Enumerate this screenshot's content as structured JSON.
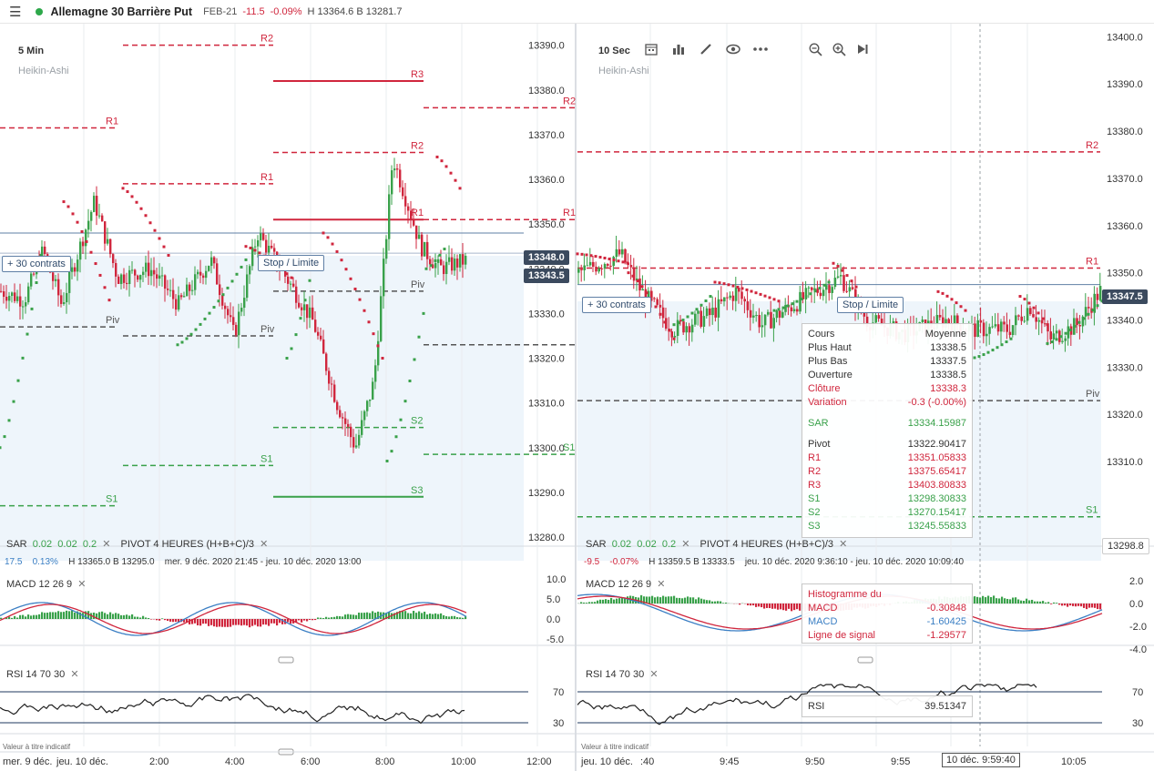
{
  "header": {
    "instrument": "Allemagne 30 Barrière Put",
    "expiry": "FEB-21",
    "change": "-11.5",
    "change_pct": "-0.09%",
    "hb": "H 13364.6  B 13281.7"
  },
  "left": {
    "timeframe": "5 Min",
    "chart_style": "Heikin-Ashi",
    "y_ticks": [
      "13390.0",
      "13380.0",
      "13370.0",
      "13360.0",
      "13350.0",
      "13340.0",
      "13330.0",
      "13320.0",
      "13310.0",
      "13300.0",
      "13290.0",
      "13280.0"
    ],
    "tag_upper": "13348.0",
    "tag_lower": "13343.5",
    "contracts": "+ 30 contrats",
    "stop": "Stop / Limite",
    "pivot_labels": {
      "r1a": "R1",
      "r2a": "R2",
      "r1b": "R1",
      "r2b": "R2",
      "r3": "R3",
      "r1c": "R1",
      "r2c": "R2",
      "r1d": "R1",
      "piv_a": "Piv",
      "piv_b": "Piv",
      "piv_c": "Piv",
      "s1a": "S1",
      "s1b": "S1",
      "s2": "S2",
      "s3": "S3",
      "s1c": "S1"
    },
    "sar_label": {
      "name": "SAR",
      "p1": "0.02",
      "p2": "0.02",
      "p3": "0.2"
    },
    "pivot_ind_label": "PIVOT  4 HEURES  (H+B+C)/3",
    "info": {
      "v1": "17.5",
      "v2": "0.13%",
      "hb": "H 13365.0   B 13295.0",
      "range": "mer. 9 déc. 2020 21:45 - jeu. 10 déc. 2020 13:00"
    },
    "macd_label": "MACD  12  26  9",
    "macd_ticks": [
      "10.0",
      "5.0",
      "0.0",
      "-5.0"
    ],
    "rsi_label": "RSI  14  70  30",
    "rsi_ticks": [
      "70",
      "30"
    ],
    "watermark": "Valeur à titre indicatif",
    "time_labels": [
      "mer. 9 déc.",
      "jeu. 10 déc.",
      "2:00",
      "4:00",
      "6:00",
      "8:00",
      "10:00",
      "12:00"
    ]
  },
  "right": {
    "timeframe": "10 Sec",
    "chart_style": "Heikin-Ashi",
    "y_ticks": [
      "13400.0",
      "13390.0",
      "13380.0",
      "13370.0",
      "13360.0",
      "13350.0",
      "13340.0",
      "13330.0",
      "13320.0",
      "13310.0"
    ],
    "tag_price": "13347.5",
    "tag_bottom": "13298.8",
    "contracts": "+ 30 contrats",
    "stop": "Stop / Limite",
    "pivot_labels": {
      "r2": "R2",
      "r1": "R1",
      "piv": "Piv",
      "s1": "S1"
    },
    "sar_label": {
      "name": "SAR",
      "p1": "0.02",
      "p2": "0.02",
      "p3": "0.2"
    },
    "pivot_ind_label": "PIVOT  4 HEURES  (H+B+C)/3",
    "info": {
      "v1": "-9.5",
      "v2": "-0.07%",
      "hb": "H 13359.5   B 13333.5",
      "range": "jeu. 10 déc. 2020 9:36:10 - jeu. 10 déc. 2020 10:09:40"
    },
    "macd_label": "MACD  12  26  9",
    "macd_ticks": [
      "2.0",
      "0.0",
      "-2.0",
      "-4.0"
    ],
    "rsi_label": "RSI  14  70  30",
    "rsi_ticks": [
      "70",
      "30"
    ],
    "watermark": "Valeur à titre indicatif",
    "time_labels": [
      "jeu. 10 déc.",
      ":40",
      "9:45",
      "9:50",
      "9:55",
      "10:05"
    ],
    "crosshair_time": "10 déc. 9:59:40",
    "tooltip": {
      "head_left": "Cours",
      "head_right": "Moyenne",
      "rows": [
        {
          "k": "Plus Haut",
          "v": "13338.5",
          "c": "n"
        },
        {
          "k": "Plus Bas",
          "v": "13337.5",
          "c": "n"
        },
        {
          "k": "Ouverture",
          "v": "13338.5",
          "c": "n"
        },
        {
          "k": "Clôture",
          "v": "13338.3",
          "c": "r"
        },
        {
          "k": "Variation",
          "v": "-0.3 (-0.00%)",
          "c": "r"
        }
      ],
      "sar": {
        "k": "SAR",
        "v": "13334.15987"
      },
      "pivots": [
        {
          "k": "Pivot",
          "v": "13322.90417",
          "c": "n"
        },
        {
          "k": "R1",
          "v": "13351.05833",
          "c": "r"
        },
        {
          "k": "R2",
          "v": "13375.65417",
          "c": "r"
        },
        {
          "k": "R3",
          "v": "13403.80833",
          "c": "r"
        },
        {
          "k": "S1",
          "v": "13298.30833",
          "c": "g"
        },
        {
          "k": "S2",
          "v": "13270.15417",
          "c": "g"
        },
        {
          "k": "S3",
          "v": "13245.55833",
          "c": "g"
        }
      ]
    },
    "macd_tooltip": {
      "rows": [
        {
          "k": "Histogramme du",
          "v": "",
          "c": "r"
        },
        {
          "k": "MACD",
          "v": "-0.30848",
          "c": "r"
        },
        {
          "k": "MACD",
          "v": "-1.60425",
          "c": "b"
        },
        {
          "k": "Ligne de signal",
          "v": "-1.29577",
          "c": "r"
        }
      ]
    },
    "rsi_tooltip": {
      "k": "RSI",
      "v": "39.51347"
    }
  },
  "colors": {
    "up": "#39a14a",
    "down": "#d0263d",
    "tag": "#3b4a5e",
    "grid": "#e9ecef",
    "pivot_r": "#d0263d",
    "pivot_piv": "#555555",
    "pivot_s": "#39a14a",
    "macd": "#3b7fc4",
    "signal": "#d0263d"
  }
}
